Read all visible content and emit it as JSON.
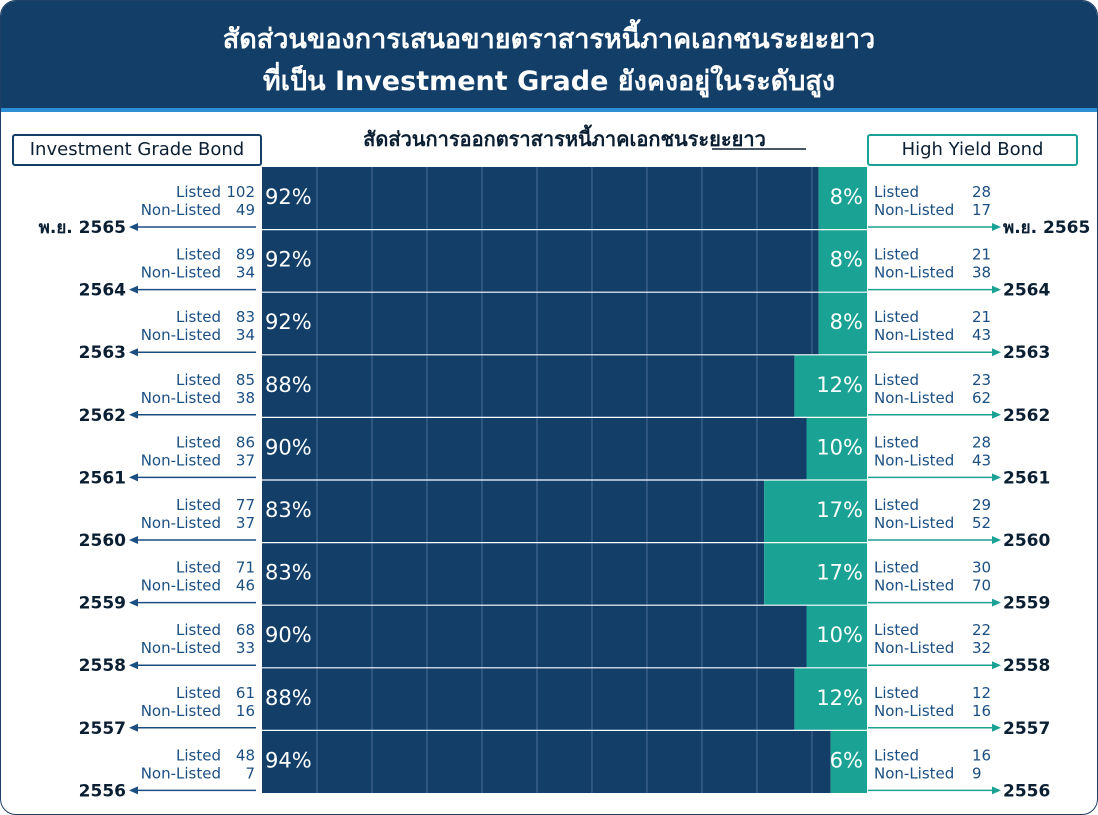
{
  "header": {
    "title_line1": "สัดส่วนของการเสนอขายตราสารหนี้ภาคเอกชนระยะยาว",
    "title_line2": "ที่เป็น Investment Grade ยังคงอยู่ในระดับสูง"
  },
  "subtitle": "สัดส่วนการออกตราสารหนี้ภาคเอกชนระยะยาว",
  "left_tag": "Investment Grade Bond",
  "right_tag": "High Yield Bond",
  "listed_label": "Listed",
  "nonlisted_label": "Non-Listed",
  "colors": {
    "investment_grade": "#123e68",
    "high_yield": "#1aa294",
    "header_bg": "#123e68"
  },
  "chart_data": {
    "type": "bar",
    "orientation": "horizontal",
    "stacked": "100%",
    "categories": [
      "พ.ย. 2565",
      "2564",
      "2563",
      "2562",
      "2561",
      "2560",
      "2559",
      "2558",
      "2557",
      "2556"
    ],
    "series": [
      {
        "name": "Investment Grade Bond",
        "values": [
          92,
          92,
          92,
          88,
          90,
          83,
          83,
          90,
          88,
          94
        ],
        "unit": "%"
      },
      {
        "name": "High Yield Bond",
        "values": [
          8,
          8,
          8,
          12,
          10,
          17,
          17,
          10,
          12,
          6
        ],
        "unit": "%"
      }
    ],
    "investment_grade_counts": {
      "listed": [
        102,
        89,
        83,
        85,
        86,
        77,
        71,
        68,
        61,
        48
      ],
      "non_listed": [
        49,
        34,
        34,
        38,
        37,
        37,
        46,
        33,
        16,
        7
      ]
    },
    "high_yield_counts": {
      "listed": [
        28,
        21,
        21,
        23,
        28,
        29,
        30,
        22,
        12,
        16
      ],
      "non_listed": [
        17,
        38,
        43,
        62,
        43,
        52,
        70,
        32,
        16,
        9
      ]
    },
    "xlim": [
      0,
      100
    ],
    "grid": true
  }
}
